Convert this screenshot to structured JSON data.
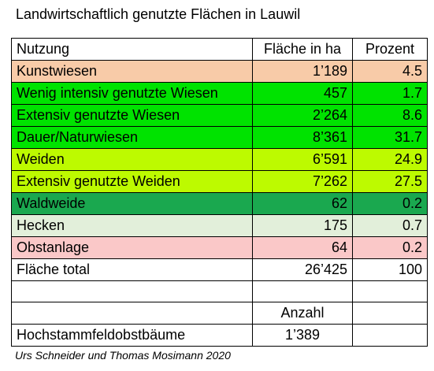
{
  "title": "Landwirtschaftlich genutzte Flächen in Lauwil",
  "table": {
    "headers": [
      "Nutzung",
      "Fläche in ha",
      "Prozent"
    ],
    "rows": [
      {
        "label": "Kunstwiesen",
        "area": "1’189",
        "percent": "4.5",
        "color": "#f8cba8"
      },
      {
        "label": "Wenig intensiv genutzte Wiesen",
        "area": "457",
        "percent": "1.7",
        "color": "#00e300"
      },
      {
        "label": "Extensiv genutzte Wiesen",
        "area": "2’264",
        "percent": "8.6",
        "color": "#00e300"
      },
      {
        "label": "Dauer/Naturwiesen",
        "area": "8’361",
        "percent": "31.7",
        "color": "#00e300"
      },
      {
        "label": "Weiden",
        "area": "6’591",
        "percent": "24.9",
        "color": "#bdfa00"
      },
      {
        "label": "Extensiv genutzte Weiden",
        "area": "7’262",
        "percent": "27.5",
        "color": "#bdfa00"
      },
      {
        "label": "Waldweide",
        "area": "62",
        "percent": "0.2",
        "color": "#1aa84f"
      },
      {
        "label": "Hecken",
        "area": "175",
        "percent": "0.7",
        "color": "#e2efda"
      },
      {
        "label": "Obstanlage",
        "area": "64",
        "percent": "0.2",
        "color": "#fac8c8"
      }
    ],
    "total": {
      "label": "Fläche total",
      "area": "26’425",
      "percent": "100"
    },
    "count_header": "Anzahl",
    "count_row": {
      "label": "Hochstammfeldobstbäume",
      "value": "1’389"
    }
  },
  "source": "Urs Schneider und Thomas Mosimann 2020"
}
